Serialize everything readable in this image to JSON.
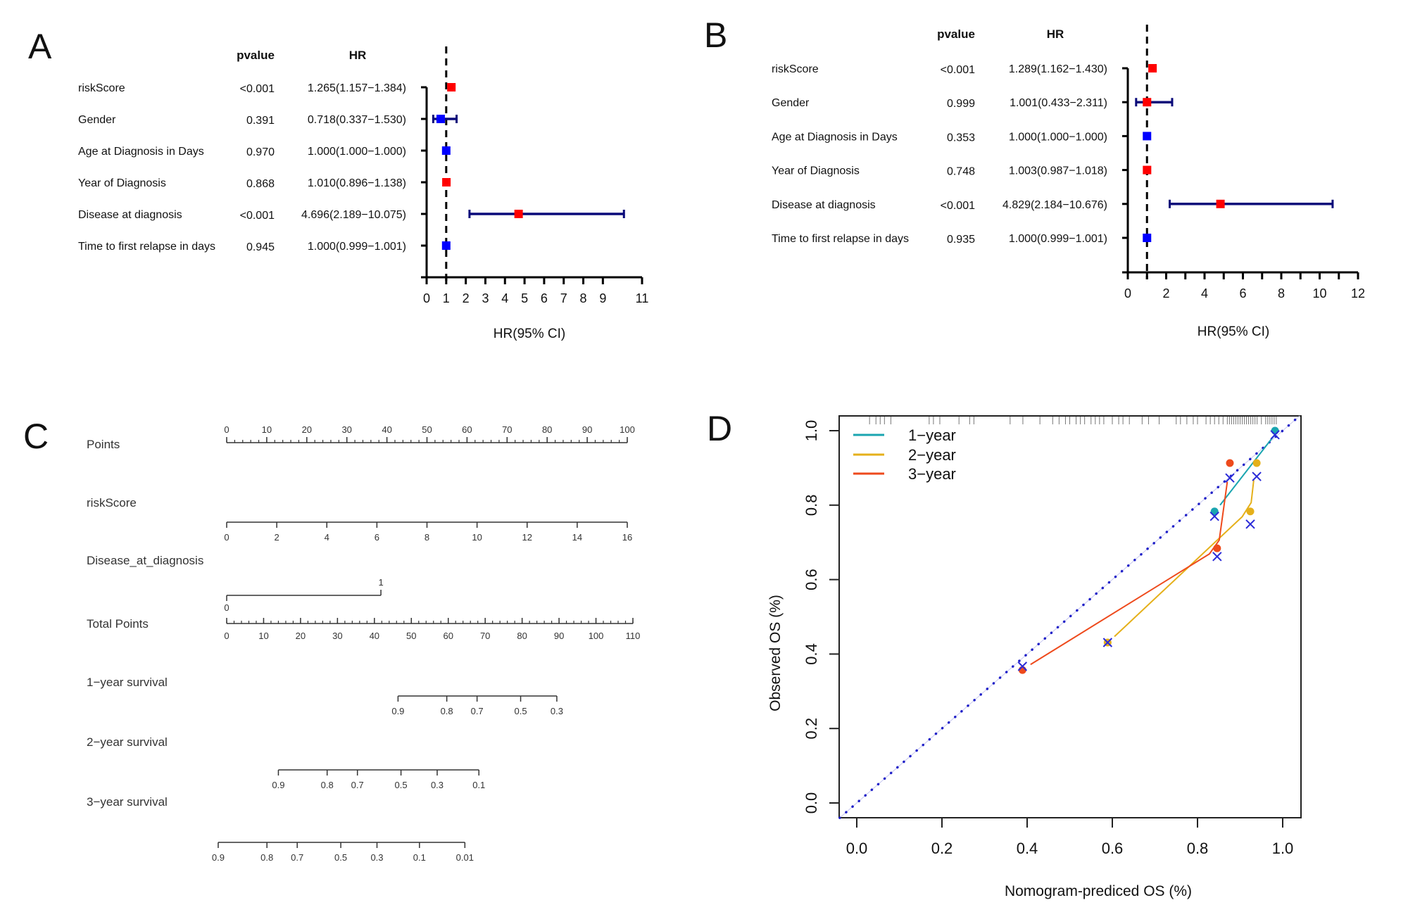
{
  "chart_data": [
    {
      "panel": "A",
      "type": "forest",
      "title": "",
      "column_headers": {
        "pvalue": "pvalue",
        "hr": "HR"
      },
      "xlabel": "HR(95% CI)",
      "xlim": [
        0,
        11
      ],
      "xticks": [
        0,
        1,
        2,
        3,
        4,
        5,
        6,
        7,
        8,
        9,
        11
      ],
      "reference_line": 1,
      "rows": [
        {
          "label": "riskScore",
          "pvalue": "<0.001",
          "hr_text": "1.265(1.157−1.384)",
          "hr": 1.265,
          "lower": 1.157,
          "upper": 1.384,
          "color": "#ff0000"
        },
        {
          "label": "Gender",
          "pvalue": "0.391",
          "hr_text": "0.718(0.337−1.530)",
          "hr": 0.718,
          "lower": 0.337,
          "upper": 1.53,
          "color": "#0000ff"
        },
        {
          "label": "Age at Diagnosis in Days",
          "pvalue": "0.970",
          "hr_text": "1.000(1.000−1.000)",
          "hr": 1.0,
          "lower": 1.0,
          "upper": 1.0,
          "color": "#0000ff"
        },
        {
          "label": "Year of Diagnosis",
          "pvalue": "0.868",
          "hr_text": "1.010(0.896−1.138)",
          "hr": 1.01,
          "lower": 0.896,
          "upper": 1.138,
          "color": "#ff0000"
        },
        {
          "label": "Disease at diagnosis",
          "pvalue": "<0.001",
          "hr_text": "4.696(2.189−10.075)",
          "hr": 4.696,
          "lower": 2.189,
          "upper": 10.075,
          "color": "#ff0000"
        },
        {
          "label": "Time to first relapse in days",
          "pvalue": "0.945",
          "hr_text": "1.000(0.999−1.001)",
          "hr": 1.0,
          "lower": 0.999,
          "upper": 1.001,
          "color": "#0000ff"
        }
      ]
    },
    {
      "panel": "B",
      "type": "forest",
      "title": "",
      "column_headers": {
        "pvalue": "pvalue",
        "hr": "HR"
      },
      "xlabel": "HR(95% CI)",
      "xlim": [
        0,
        12
      ],
      "xticks": [
        0,
        1,
        2,
        3,
        4,
        5,
        6,
        7,
        8,
        9,
        10,
        11,
        12
      ],
      "xticklabels": [
        0,
        2,
        4,
        6,
        8,
        10,
        12
      ],
      "reference_line": 1,
      "rows": [
        {
          "label": "riskScore",
          "pvalue": "<0.001",
          "hr_text": "1.289(1.162−1.430)",
          "hr": 1.289,
          "lower": 1.162,
          "upper": 1.43,
          "color": "#ff0000"
        },
        {
          "label": "Gender",
          "pvalue": "0.999",
          "hr_text": "1.001(0.433−2.311)",
          "hr": 1.001,
          "lower": 0.433,
          "upper": 2.311,
          "color": "#ff0000"
        },
        {
          "label": "Age at Diagnosis in Days",
          "pvalue": "0.353",
          "hr_text": "1.000(1.000−1.000)",
          "hr": 1.0,
          "lower": 1.0,
          "upper": 1.0,
          "color": "#0000ff"
        },
        {
          "label": "Year of Diagnosis",
          "pvalue": "0.748",
          "hr_text": "1.003(0.987−1.018)",
          "hr": 1.003,
          "lower": 0.987,
          "upper": 1.018,
          "color": "#ff0000"
        },
        {
          "label": "Disease at diagnosis",
          "pvalue": "<0.001",
          "hr_text": "4.829(2.184−10.676)",
          "hr": 4.829,
          "lower": 2.184,
          "upper": 10.676,
          "color": "#ff0000"
        },
        {
          "label": "Time to first relapse in days",
          "pvalue": "0.935",
          "hr_text": "1.000(0.999−1.001)",
          "hr": 1.0,
          "lower": 0.999,
          "upper": 1.001,
          "color": "#0000ff"
        }
      ]
    },
    {
      "panel": "C",
      "type": "nomogram",
      "title": "",
      "scales": [
        {
          "label": "Points",
          "kind": "points",
          "min": 0,
          "max": 100,
          "ticks": [
            0,
            10,
            20,
            30,
            40,
            50,
            60,
            70,
            80,
            90,
            100
          ],
          "minor_step": 2,
          "label_side": "above",
          "map": [
            [
              0,
              0
            ],
            [
              100,
              100
            ]
          ]
        },
        {
          "label": "riskScore",
          "kind": "variable",
          "ticks": [
            0,
            2,
            4,
            6,
            8,
            10,
            12,
            14,
            16
          ],
          "label_side": "below",
          "map": [
            [
              0,
              0
            ],
            [
              16,
              100
            ]
          ]
        },
        {
          "label": "Disease_at_diagnosis",
          "kind": "binary",
          "ticks": [
            0,
            1
          ],
          "tick_sides": [
            "below",
            "above"
          ],
          "map": [
            [
              0,
              0
            ],
            [
              1,
              38.5
            ]
          ]
        },
        {
          "label": "Total Points",
          "kind": "total",
          "min": 0,
          "max": 110,
          "ticks": [
            0,
            10,
            20,
            30,
            40,
            50,
            60,
            70,
            80,
            90,
            100,
            110
          ],
          "minor_step": 2,
          "label_side": "below",
          "map": [
            [
              0,
              0
            ],
            [
              110,
              110
            ]
          ]
        },
        {
          "label": "1−year survival",
          "kind": "survival",
          "ticks": [
            "0.9",
            "0.8",
            "0.7",
            "0.5",
            "0.3"
          ],
          "total_points": [
            46.4,
            59.6,
            67.8,
            79.6,
            89.4
          ]
        },
        {
          "label": "2−year survival",
          "kind": "survival",
          "ticks": [
            "0.9",
            "0.8",
            "0.7",
            "0.5",
            "0.3",
            "0.1"
          ],
          "total_points": [
            14.0,
            27.2,
            35.4,
            47.2,
            57.0,
            68.3
          ]
        },
        {
          "label": "3−year survival",
          "kind": "survival",
          "ticks": [
            "0.9",
            "0.8",
            "0.7",
            "0.5",
            "0.3",
            "0.1",
            "0.01"
          ],
          "total_points": [
            -2.3,
            10.9,
            19.1,
            30.9,
            40.7,
            52.2,
            64.5
          ]
        }
      ]
    },
    {
      "panel": "D",
      "type": "line",
      "title": "",
      "xlabel": "Nomogram-prediced OS (%)",
      "ylabel": "Observed OS (%)",
      "xlim": [
        -0.04,
        1.04
      ],
      "ylim": [
        -0.04,
        1.04
      ],
      "xticks": [
        "0.0",
        "0.2",
        "0.4",
        "0.6",
        "0.8",
        "1.0"
      ],
      "yticks": [
        "0.0",
        "0.2",
        "0.4",
        "0.6",
        "0.8",
        "1.0"
      ],
      "legend_position": "top-left",
      "reference_line": {
        "style": "dotted",
        "color": "#2020c8",
        "from": [
          -0.04,
          -0.04
        ],
        "to": [
          1.04,
          1.04
        ]
      },
      "series": [
        {
          "name": "1−year",
          "color": "#1aa5b0",
          "points": [
            {
              "x": 0.84,
              "y": 0.783
            },
            {
              "x": 0.982,
              "y": 1.0
            }
          ],
          "corrected": [
            {
              "x": 0.84,
              "y": 0.77
            },
            {
              "x": 0.982,
              "y": 0.989
            }
          ],
          "line": [
            {
              "x": 0.853,
              "y": 0.8
            },
            {
              "x": 0.982,
              "y": 0.99
            }
          ]
        },
        {
          "name": "2−year",
          "color": "#e5b01a",
          "points": [
            {
              "x": 0.589,
              "y": 0.431
            },
            {
              "x": 0.924,
              "y": 0.783
            },
            {
              "x": 0.939,
              "y": 0.913
            }
          ],
          "corrected": [
            {
              "x": 0.589,
              "y": 0.431
            },
            {
              "x": 0.924,
              "y": 0.749
            },
            {
              "x": 0.939,
              "y": 0.877
            }
          ],
          "line": [
            {
              "x": 0.605,
              "y": 0.447
            },
            {
              "x": 0.905,
              "y": 0.769
            },
            {
              "x": 0.926,
              "y": 0.807
            },
            {
              "x": 0.932,
              "y": 0.867
            }
          ]
        },
        {
          "name": "3−year",
          "color": "#ee4a1c",
          "points": [
            {
              "x": 0.389,
              "y": 0.357
            },
            {
              "x": 0.846,
              "y": 0.684
            },
            {
              "x": 0.876,
              "y": 0.913
            }
          ],
          "corrected": [
            {
              "x": 0.389,
              "y": 0.367
            },
            {
              "x": 0.846,
              "y": 0.662
            },
            {
              "x": 0.876,
              "y": 0.873
            }
          ],
          "line": [
            {
              "x": 0.408,
              "y": 0.372
            },
            {
              "x": 0.828,
              "y": 0.669
            },
            {
              "x": 0.851,
              "y": 0.706
            },
            {
              "x": 0.87,
              "y": 0.863
            }
          ]
        }
      ],
      "rug_x": [
        0.03,
        0.045,
        0.055,
        0.065,
        0.08,
        0.17,
        0.18,
        0.195,
        0.24,
        0.265,
        0.275,
        0.36,
        0.39,
        0.43,
        0.46,
        0.475,
        0.49,
        0.5,
        0.515,
        0.525,
        0.535,
        0.55,
        0.56,
        0.57,
        0.58,
        0.6,
        0.615,
        0.625,
        0.64,
        0.67,
        0.685,
        0.71,
        0.75,
        0.76,
        0.775,
        0.79,
        0.8,
        0.82,
        0.83,
        0.84,
        0.85,
        0.86,
        0.87,
        0.875,
        0.88,
        0.885,
        0.89,
        0.895,
        0.9,
        0.905,
        0.91,
        0.915,
        0.92,
        0.925,
        0.93,
        0.935,
        0.94,
        0.95,
        0.96,
        0.965,
        0.97,
        0.975,
        0.98,
        0.985
      ]
    }
  ],
  "panels": {
    "A": {
      "letter": "A"
    },
    "B": {
      "letter": "B"
    },
    "C": {
      "letter": "C"
    },
    "D": {
      "letter": "D"
    }
  }
}
